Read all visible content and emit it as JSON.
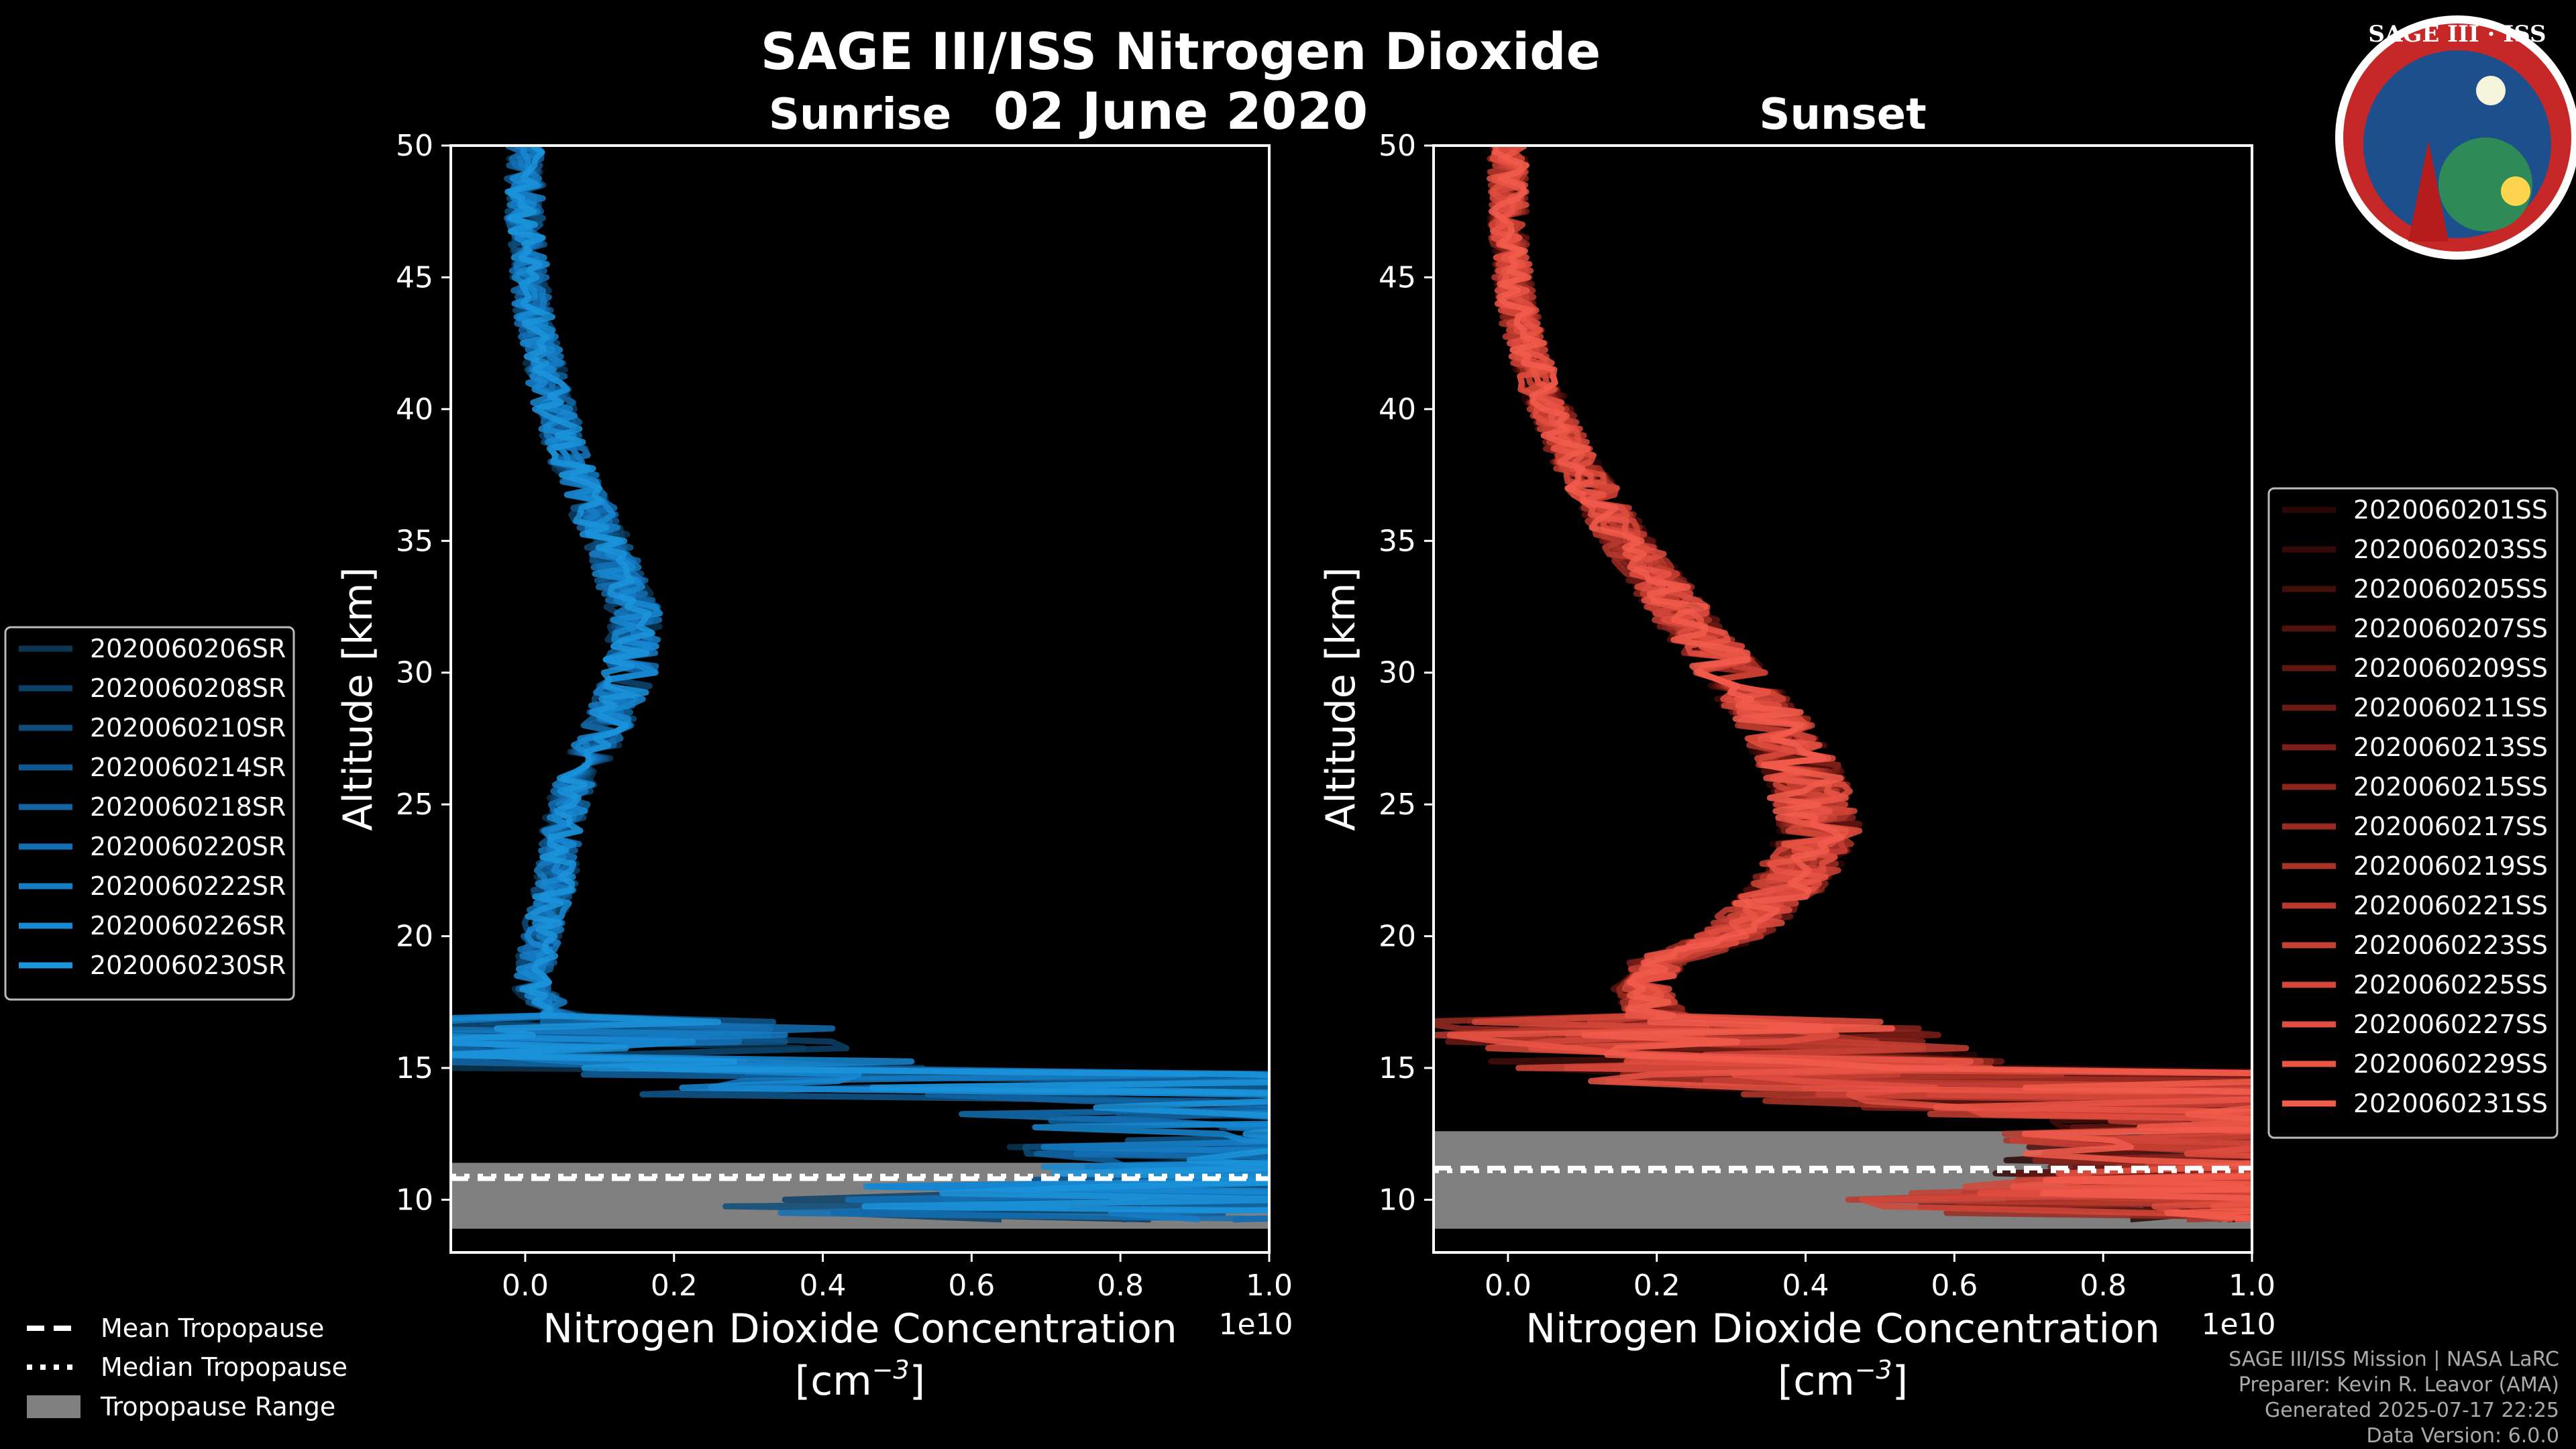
{
  "title": "SAGE III/ISS Nitrogen Dioxide",
  "date": "02 June 2020",
  "logo": {
    "text": "SAGE III · ISS",
    "ring_color": "#c62828",
    "bg_color": "#1d4f8c"
  },
  "footer": {
    "mission": "SAGE III/ISS Mission | NASA LaRC",
    "preparer": "Preparer: Kevin R. Leavor (AMA)",
    "generated": "Generated 2025-07-17 22:25",
    "version": "Data Version: 6.0.0"
  },
  "bottom_legend": {
    "mean": "Mean Tropopause",
    "median": "Median Tropopause",
    "range": "Tropopause Range"
  },
  "chart_data": [
    {
      "type": "line",
      "title": "Sunrise",
      "xlabel": "Nitrogen Dioxide Concentration",
      "xunit": "[cm",
      "xunit_exp": "−3",
      "xunit_close": "]",
      "ylabel": "Altitude [km]",
      "xlim": [
        -0.1,
        1.0
      ],
      "ylim": [
        8,
        50
      ],
      "x_ticks": [
        "0.0",
        "0.2",
        "0.4",
        "0.6",
        "0.8",
        "1.0"
      ],
      "x_tick_values": [
        0.0,
        0.2,
        0.4,
        0.6,
        0.8,
        1.0
      ],
      "y_ticks": [
        "10",
        "15",
        "20",
        "25",
        "30",
        "35",
        "40",
        "45",
        "50"
      ],
      "y_tick_values": [
        10,
        15,
        20,
        25,
        30,
        35,
        40,
        45,
        50
      ],
      "x_scale_label": "1e10",
      "line_color": "#1e96dc",
      "tropopause": {
        "mean": 10.8,
        "median": 10.9,
        "range": [
          8.9,
          11.4
        ]
      },
      "series": [
        {
          "name": "2020060206SR",
          "color": "#0b3550"
        },
        {
          "name": "2020060208SR",
          "color": "#0c4066"
        },
        {
          "name": "2020060210SR",
          "color": "#0e4c7a"
        },
        {
          "name": "2020060214SR",
          "color": "#10588e"
        },
        {
          "name": "2020060218SR",
          "color": "#1264a2"
        },
        {
          "name": "2020060220SR",
          "color": "#1470b4"
        },
        {
          "name": "2020060222SR",
          "color": "#167cc4"
        },
        {
          "name": "2020060226SR",
          "color": "#1888d2"
        },
        {
          "name": "2020060230SR",
          "color": "#1b94dc"
        }
      ],
      "profile": {
        "altitude": [
          50,
          47,
          44,
          41,
          38,
          35,
          32,
          30,
          28,
          26,
          24,
          22,
          20,
          18,
          17,
          16,
          15,
          14,
          13,
          12,
          11,
          10
        ],
        "no2": [
          0.0,
          0.0,
          0.01,
          0.03,
          0.06,
          0.11,
          0.15,
          0.14,
          0.11,
          0.07,
          0.05,
          0.04,
          0.02,
          0.01,
          0.05,
          0.1,
          0.2,
          0.5,
          1.0,
          1.0,
          1.0,
          0.6
        ]
      },
      "legend_loc": "left"
    },
    {
      "type": "line",
      "title": "Sunset",
      "xlabel": "Nitrogen Dioxide Concentration",
      "xunit": "[cm",
      "xunit_exp": "−3",
      "xunit_close": "]",
      "ylabel": "Altitude [km]",
      "xlim": [
        -0.1,
        1.0
      ],
      "ylim": [
        8,
        50
      ],
      "x_ticks": [
        "0.0",
        "0.2",
        "0.4",
        "0.6",
        "0.8",
        "1.0"
      ],
      "x_tick_values": [
        0.0,
        0.2,
        0.4,
        0.6,
        0.8,
        1.0
      ],
      "y_ticks": [
        "10",
        "15",
        "20",
        "25",
        "30",
        "35",
        "40",
        "45",
        "50"
      ],
      "y_tick_values": [
        10,
        15,
        20,
        25,
        30,
        35,
        40,
        45,
        50
      ],
      "x_scale_label": "1e10",
      "line_color": "#ef5a47",
      "tropopause": {
        "mean": 11.2,
        "median": 11.1,
        "range": [
          8.9,
          12.6
        ]
      },
      "series": [
        {
          "name": "2020060201SS",
          "color": "#2a0806"
        },
        {
          "name": "2020060203SS",
          "color": "#360a08"
        },
        {
          "name": "2020060205SS",
          "color": "#430d0a"
        },
        {
          "name": "2020060207SS",
          "color": "#51110d"
        },
        {
          "name": "2020060209SS",
          "color": "#5f1510"
        },
        {
          "name": "2020060211SS",
          "color": "#6d1a14"
        },
        {
          "name": "2020060213SS",
          "color": "#7c1f18"
        },
        {
          "name": "2020060215SS",
          "color": "#8b251d"
        },
        {
          "name": "2020060217SS",
          "color": "#9a2b22"
        },
        {
          "name": "2020060219SS",
          "color": "#a93228"
        },
        {
          "name": "2020060221SS",
          "color": "#b8392e"
        },
        {
          "name": "2020060223SS",
          "color": "#c74034"
        },
        {
          "name": "2020060225SS",
          "color": "#d4473a"
        },
        {
          "name": "2020060227SS",
          "color": "#e04e40"
        },
        {
          "name": "2020060229SS",
          "color": "#ea5545"
        },
        {
          "name": "2020060231SS",
          "color": "#f25c4b"
        }
      ],
      "profile": {
        "altitude": [
          50,
          47,
          44,
          41,
          38,
          35,
          32,
          30,
          28,
          26,
          24,
          22,
          20,
          19,
          18,
          17,
          16,
          15,
          14,
          13,
          12,
          11,
          10
        ],
        "no2": [
          0.0,
          0.0,
          0.01,
          0.04,
          0.09,
          0.16,
          0.24,
          0.3,
          0.36,
          0.4,
          0.42,
          0.38,
          0.3,
          0.2,
          0.18,
          0.2,
          0.25,
          0.35,
          0.55,
          1.0,
          1.0,
          1.0,
          0.8
        ]
      },
      "legend_loc": "right"
    }
  ]
}
